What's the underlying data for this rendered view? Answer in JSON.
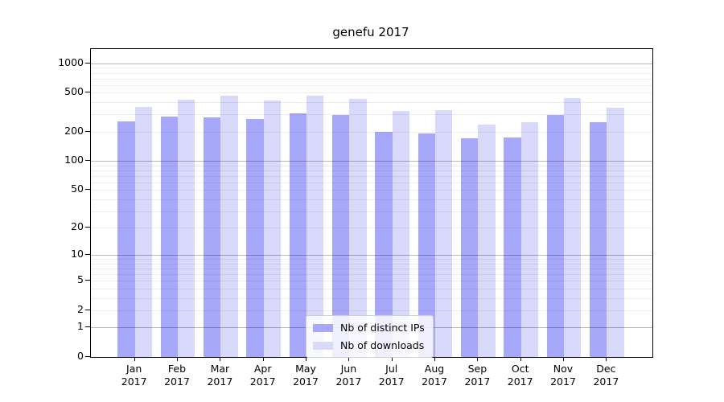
{
  "title_block": {
    "title": "genefu 2017"
  },
  "year": "2017",
  "colors": {
    "ips_bar": "#a8a8fa",
    "downloads_bar": "#d9d9fb",
    "spine": "#000000",
    "grid_major": "rgba(0,0,0,0.28)",
    "grid_minor": "rgba(0,0,0,0.07)"
  },
  "legend": {
    "items": [
      {
        "label": "Nb of distinct IPs",
        "series": "ips"
      },
      {
        "label": "Nb of downloads",
        "series": "downloads"
      }
    ]
  },
  "chart_data": {
    "type": "bar",
    "title": "genefu 2017",
    "categories": [
      "Jan",
      "Feb",
      "Mar",
      "Apr",
      "May",
      "Jun",
      "Jul",
      "Aug",
      "Sep",
      "Oct",
      "Nov",
      "Dec"
    ],
    "category_year": "2017",
    "series": [
      {
        "name": "Nb of distinct IPs",
        "color": "#a8a8fa",
        "values": [
          255,
          286,
          279,
          271,
          308,
          296,
          197,
          191,
          171,
          175,
          296,
          250
        ]
      },
      {
        "name": "Nb of downloads",
        "color": "#d9d9fb",
        "values": [
          361,
          426,
          469,
          419,
          465,
          429,
          325,
          335,
          234,
          252,
          438,
          350
        ]
      }
    ],
    "yscale": "log1p",
    "yticks": [
      0,
      1,
      2,
      5,
      10,
      20,
      50,
      100,
      200,
      500,
      1000
    ],
    "ylim": [
      0,
      1400
    ],
    "xlabel": "",
    "ylabel": "",
    "grid": true,
    "legend_position": "lower-center"
  }
}
